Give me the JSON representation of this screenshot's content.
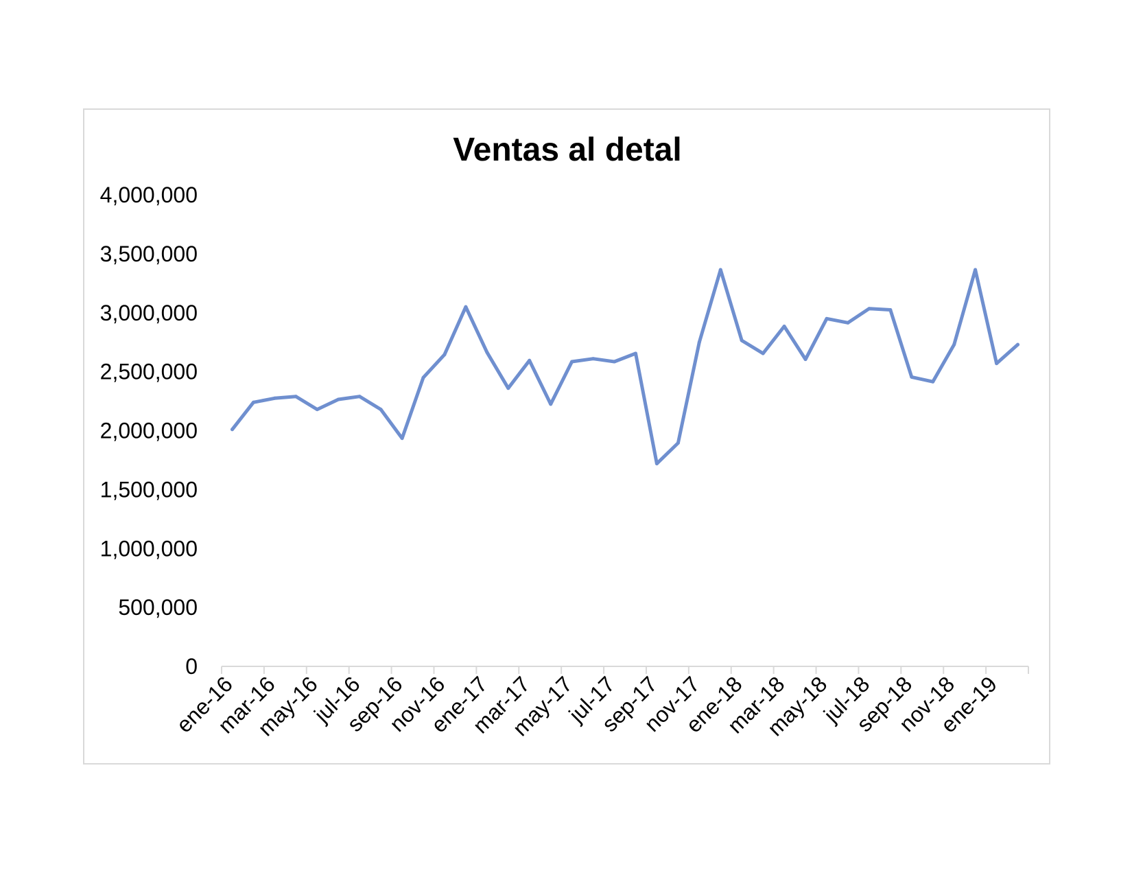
{
  "chart_data": {
    "type": "line",
    "title": "Ventas al detal",
    "xlabel": "",
    "ylabel": "",
    "ylim": [
      0,
      4000000
    ],
    "yticks": [
      0,
      500000,
      1000000,
      1500000,
      2000000,
      2500000,
      3000000,
      3500000,
      4000000
    ],
    "ytick_labels": [
      "0",
      "500,000",
      "1,000,000",
      "1,500,000",
      "2,000,000",
      "2,500,000",
      "3,000,000",
      "3,500,000",
      "4,000,000"
    ],
    "xtick_labels": [
      "ene-16",
      "mar-16",
      "may-16",
      "jul-16",
      "sep-16",
      "nov-16",
      "ene-17",
      "mar-17",
      "may-17",
      "jul-17",
      "sep-17",
      "nov-17",
      "ene-18",
      "mar-18",
      "may-18",
      "jul-18",
      "sep-18",
      "nov-18",
      "ene-19"
    ],
    "grid": false,
    "legend": "none",
    "line_color": "#6f8fcf",
    "x": [
      "ene-16",
      "feb-16",
      "mar-16",
      "abr-16",
      "may-16",
      "jun-16",
      "jul-16",
      "ago-16",
      "sep-16",
      "oct-16",
      "nov-16",
      "dic-16",
      "ene-17",
      "feb-17",
      "mar-17",
      "abr-17",
      "may-17",
      "jun-17",
      "jul-17",
      "ago-17",
      "sep-17",
      "oct-17",
      "nov-17",
      "dic-17",
      "ene-18",
      "feb-18",
      "mar-18",
      "abr-18",
      "may-18",
      "jun-18",
      "jul-18",
      "ago-18",
      "sep-18",
      "oct-18",
      "nov-18",
      "dic-18",
      "ene-19",
      "feb-19"
    ],
    "series": [
      {
        "values": [
          2010000,
          2240000,
          2275000,
          2290000,
          2180000,
          2265000,
          2290000,
          2180000,
          1935000,
          2450000,
          2645000,
          3050000,
          2665000,
          2360000,
          2595000,
          2225000,
          2585000,
          2610000,
          2585000,
          2655000,
          1720000,
          1895000,
          2750000,
          3365000,
          2765000,
          2655000,
          2885000,
          2605000,
          2950000,
          2915000,
          3035000,
          3025000,
          2455000,
          2415000,
          2730000,
          3365000,
          2570000,
          2730000
        ]
      }
    ]
  }
}
